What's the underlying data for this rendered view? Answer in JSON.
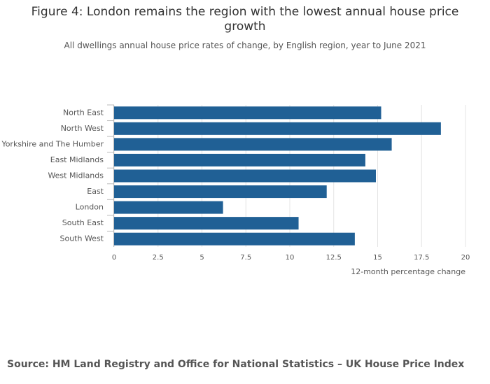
{
  "chart_data": {
    "type": "bar",
    "orientation": "horizontal",
    "title": "Figure 4: London remains the region with the lowest annual house price growth",
    "subtitle": "All dwellings annual house price rates of change, by English region, year to June 2021",
    "x_label": "12-month percentage change",
    "source": "Source: HM Land Registry and Office for National Statistics – UK House Price Index",
    "categories": [
      "North East",
      "North West",
      "Yorkshire and The Humber",
      "East Midlands",
      "West Midlands",
      "East",
      "London",
      "South East",
      "South West"
    ],
    "values": [
      15.2,
      18.6,
      15.8,
      14.3,
      14.9,
      12.1,
      6.2,
      10.5,
      13.7
    ],
    "color": "#206095",
    "xlim": [
      0,
      20
    ],
    "xticks": [
      0,
      2.5,
      5,
      7.5,
      10,
      12.5,
      15,
      17.5,
      20
    ],
    "grid": true
  }
}
